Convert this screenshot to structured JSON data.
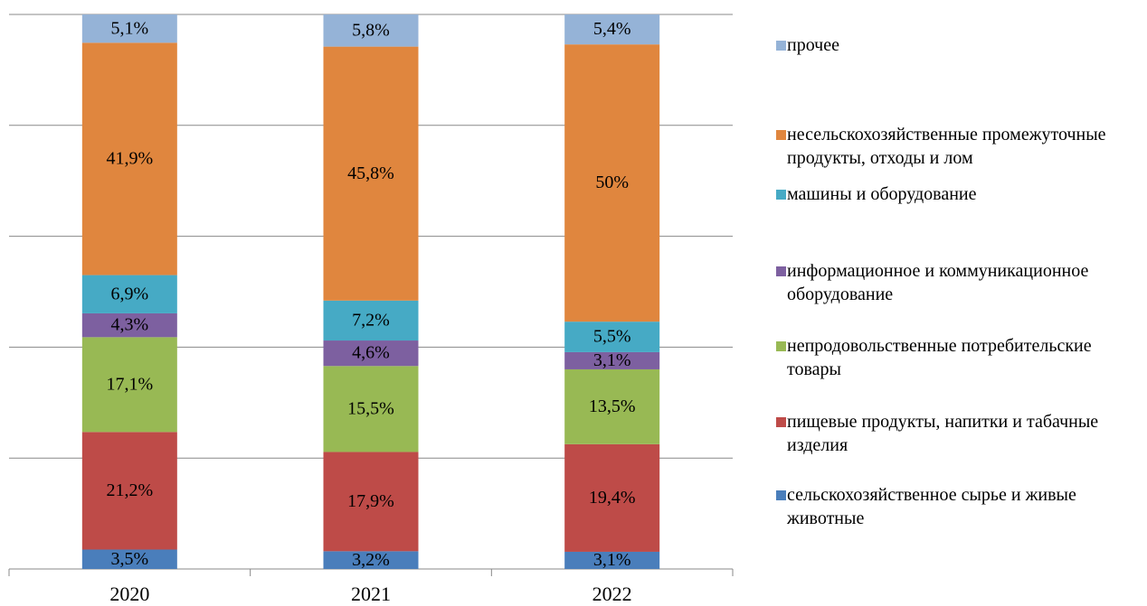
{
  "chart_data": {
    "type": "stacked_bar",
    "categories": [
      "2020",
      "2021",
      "2022"
    ],
    "ylim": [
      0,
      100
    ],
    "yticks": [
      0,
      20,
      40,
      60,
      80,
      100
    ],
    "grid": true,
    "series": [
      {
        "name": "сельскохозяйственное сырье и живые животные",
        "color": "#4a7ebb",
        "values": [
          3.5,
          3.2,
          3.1
        ],
        "value_labels": [
          "3,5%",
          "3,2%",
          "3,1%"
        ]
      },
      {
        "name": "пищевые продукты, напитки и табачные изделия",
        "color": "#be4b48",
        "values": [
          21.2,
          17.9,
          19.4
        ],
        "value_labels": [
          "21,2%",
          "17,9%",
          "19,4%"
        ]
      },
      {
        "name": "непродовольственные потребительские товары",
        "color": "#98b954",
        "values": [
          17.1,
          15.5,
          13.5
        ],
        "value_labels": [
          "17,1%",
          "15,5%",
          "13,5%"
        ]
      },
      {
        "name": "информационное и коммуникационное оборудование",
        "color": "#7d60a0",
        "values": [
          4.3,
          4.6,
          3.1
        ],
        "value_labels": [
          "4,3%",
          "4,6%",
          "3,1%"
        ]
      },
      {
        "name": "машины и оборудование",
        "color": "#46aac5",
        "values": [
          6.9,
          7.2,
          5.5
        ],
        "value_labels": [
          "6,9%",
          "7,2%",
          "5,5%"
        ]
      },
      {
        "name": "несельскохозяйственные промежуточные продукты, отходы и лом",
        "color": "#e0863e",
        "values": [
          41.9,
          45.8,
          50
        ],
        "value_labels": [
          "41,9%",
          "45,8%",
          "50%"
        ]
      },
      {
        "name": "прочее",
        "color": "#95b3d7",
        "values": [
          5.1,
          5.8,
          5.4
        ],
        "value_labels": [
          "5,1%",
          "5,8%",
          "5,4%"
        ]
      }
    ]
  }
}
